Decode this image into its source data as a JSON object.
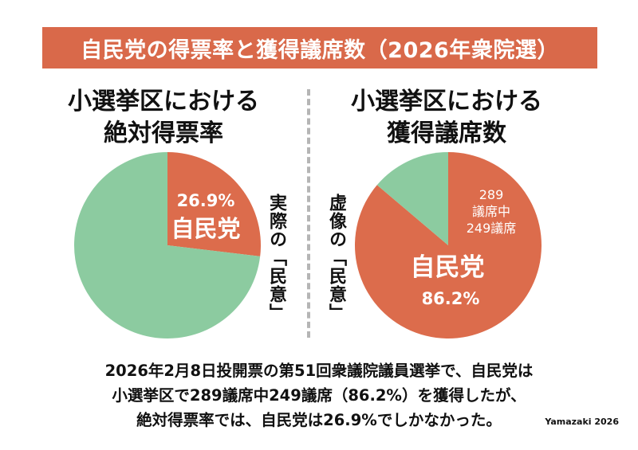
{
  "title": "自民党の得票率と獲得議席数（2026年衆院選）",
  "chart_data": [
    {
      "type": "pie",
      "title_lines": [
        "小選挙区における",
        "絶対得票率"
      ],
      "slices": [
        {
          "label": "自民党",
          "value": 26.9,
          "value_label": "26.9%",
          "color": "#dc6c4c"
        },
        {
          "value": 73.1,
          "color": "#8ccba0"
        }
      ],
      "side_note": "実際の「民意」"
    },
    {
      "type": "pie",
      "title_lines": [
        "小選挙区における",
        "獲得議席数"
      ],
      "total_seats": 289,
      "ldp_seats": 249,
      "seat_note_lines": [
        "289",
        "議席中",
        "249議席"
      ],
      "slices": [
        {
          "label": "自民党",
          "value": 86.2,
          "value_label": "86.2%",
          "color": "#dc6c4c"
        },
        {
          "value": 13.8,
          "color": "#8ccba0"
        }
      ],
      "side_note": "虚像の「民意」"
    }
  ],
  "caption_lines": [
    "2026年2月8日投開票の第51回衆議院議員選挙で、自民党は",
    "小選挙区で289議席中249議席（86.2%）を獲得したが、",
    "絶対得票率では、自民党は26.9%でしかなかった。"
  ],
  "credit": "Yamazaki 2026"
}
